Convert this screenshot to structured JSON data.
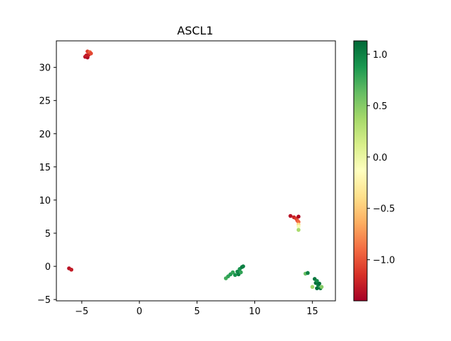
{
  "chart_data": {
    "type": "scatter",
    "title": "ASCL1",
    "xlabel": "",
    "ylabel": "",
    "xlim": [
      -7.2,
      17.0
    ],
    "ylim": [
      -5.2,
      34.0
    ],
    "xticks": [
      -5,
      0,
      5,
      10,
      15
    ],
    "yticks": [
      -5,
      0,
      5,
      10,
      15,
      20,
      25,
      30
    ],
    "grid": false,
    "colormap": "RdYlGn",
    "colorbar": {
      "min": -1.4,
      "max": 1.13,
      "ticks": [
        -1.0,
        -0.5,
        0.0,
        0.5,
        1.0
      ]
    },
    "points": [
      {
        "x": -4.7,
        "y": 31.6,
        "v": -1.3
      },
      {
        "x": -4.5,
        "y": 31.5,
        "v": -1.35
      },
      {
        "x": -4.4,
        "y": 31.9,
        "v": -1.2
      },
      {
        "x": -4.6,
        "y": 31.8,
        "v": -1.25
      },
      {
        "x": -4.5,
        "y": 32.4,
        "v": -1.1
      },
      {
        "x": -4.3,
        "y": 32.3,
        "v": -0.95
      },
      {
        "x": -4.2,
        "y": 32.1,
        "v": -1.05
      },
      {
        "x": -6.1,
        "y": -0.3,
        "v": -1.3
      },
      {
        "x": -5.9,
        "y": -0.5,
        "v": -1.25
      },
      {
        "x": 13.1,
        "y": 7.6,
        "v": -1.3
      },
      {
        "x": 13.4,
        "y": 7.4,
        "v": -1.2
      },
      {
        "x": 13.6,
        "y": 7.2,
        "v": -1.1
      },
      {
        "x": 13.7,
        "y": 6.9,
        "v": -1.0
      },
      {
        "x": 13.8,
        "y": 7.5,
        "v": -1.35
      },
      {
        "x": 13.8,
        "y": 6.7,
        "v": -0.9
      },
      {
        "x": 13.8,
        "y": 6.3,
        "v": -0.4
      },
      {
        "x": 13.8,
        "y": 6.0,
        "v": -0.1
      },
      {
        "x": 13.8,
        "y": 5.5,
        "v": 0.35
      },
      {
        "x": 7.5,
        "y": -1.8,
        "v": 0.75
      },
      {
        "x": 7.7,
        "y": -1.5,
        "v": 0.8
      },
      {
        "x": 7.9,
        "y": -1.2,
        "v": 0.85
      },
      {
        "x": 8.1,
        "y": -0.9,
        "v": 0.8
      },
      {
        "x": 8.3,
        "y": -1.3,
        "v": 0.9
      },
      {
        "x": 8.5,
        "y": -0.8,
        "v": 0.95
      },
      {
        "x": 8.6,
        "y": -1.2,
        "v": 1.0
      },
      {
        "x": 8.7,
        "y": -0.4,
        "v": 0.9
      },
      {
        "x": 8.8,
        "y": -0.9,
        "v": 0.8
      },
      {
        "x": 8.9,
        "y": -0.1,
        "v": 1.05
      },
      {
        "x": 9.0,
        "y": 0.0,
        "v": 1.0
      },
      {
        "x": 14.4,
        "y": -1.1,
        "v": 0.6
      },
      {
        "x": 14.6,
        "y": -1.0,
        "v": 1.0
      },
      {
        "x": 15.0,
        "y": -3.1,
        "v": 0.4
      },
      {
        "x": 15.2,
        "y": -1.9,
        "v": 1.05
      },
      {
        "x": 15.3,
        "y": -2.5,
        "v": 1.1
      },
      {
        "x": 15.4,
        "y": -2.2,
        "v": 0.95
      },
      {
        "x": 15.4,
        "y": -3.3,
        "v": 1.1
      },
      {
        "x": 15.5,
        "y": -2.8,
        "v": 1.0
      },
      {
        "x": 15.6,
        "y": -2.6,
        "v": 1.1
      },
      {
        "x": 15.7,
        "y": -3.3,
        "v": 1.05
      },
      {
        "x": 15.8,
        "y": -3.1,
        "v": 0.5
      }
    ]
  }
}
